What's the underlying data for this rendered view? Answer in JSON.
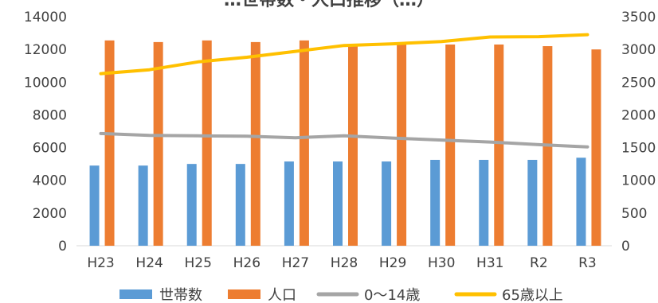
{
  "chart_data": {
    "type": "bar",
    "title": "…世帯数・人口推移（…）",
    "categories": [
      "H23",
      "H24",
      "H25",
      "H26",
      "H27",
      "H28",
      "H29",
      "H30",
      "H31",
      "R2",
      "R3"
    ],
    "y_left": {
      "range": [
        0,
        14000
      ],
      "ticks": [
        "0",
        "2000",
        "4000",
        "6000",
        "8000",
        "10000",
        "12000",
        "14000"
      ]
    },
    "y_right": {
      "range": [
        0,
        3500
      ],
      "ticks": [
        "0",
        "500",
        "1000",
        "1500",
        "2000",
        "2500",
        "3000",
        "3500"
      ]
    },
    "grid": false,
    "legend_position": "bottom",
    "series": [
      {
        "name": "世帯数",
        "kind": "bar",
        "axis": "left",
        "color": "#5B9BD5",
        "values": [
          4900,
          4900,
          5000,
          5000,
          5150,
          5150,
          5150,
          5250,
          5250,
          5250,
          5380
        ]
      },
      {
        "name": "人口",
        "kind": "bar",
        "axis": "left",
        "color": "#ED7D31",
        "values": [
          12550,
          12450,
          12550,
          12450,
          12550,
          12250,
          12400,
          12300,
          12300,
          12200,
          12000
        ]
      },
      {
        "name": "0～14歳",
        "kind": "line",
        "axis": "right",
        "color": "#A5A5A5",
        "values": [
          1715,
          1685,
          1680,
          1675,
          1650,
          1680,
          1645,
          1615,
          1585,
          1545,
          1510
        ]
      },
      {
        "name": "65歳以上",
        "kind": "line",
        "axis": "right",
        "color": "#FFC000",
        "values": [
          2630,
          2690,
          2810,
          2880,
          2970,
          3060,
          3085,
          3120,
          3190,
          3195,
          3225
        ]
      }
    ]
  }
}
